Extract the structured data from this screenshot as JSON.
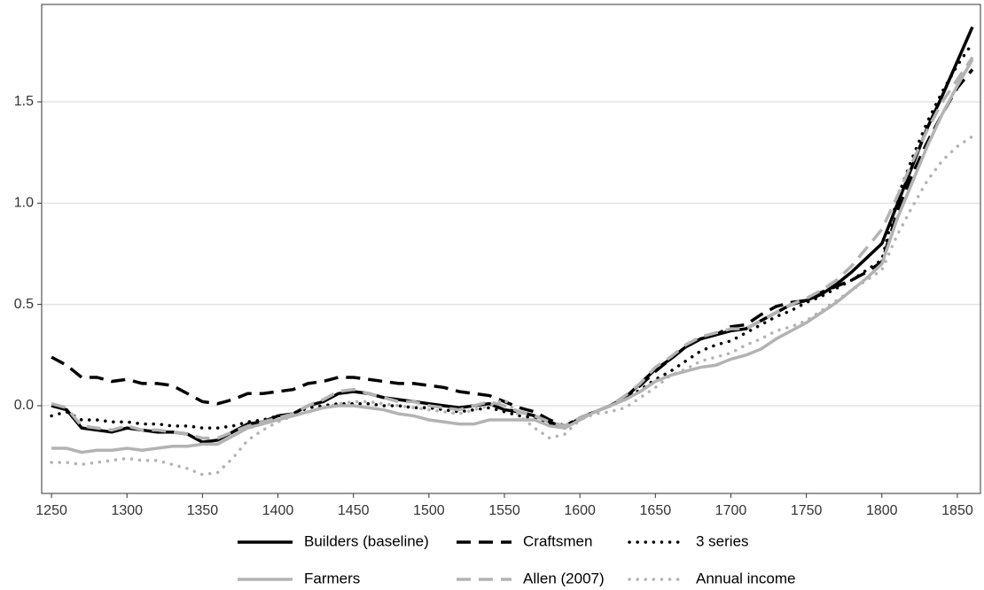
{
  "chart_data": {
    "type": "line",
    "x": [
      1250,
      1260,
      1270,
      1280,
      1290,
      1300,
      1310,
      1320,
      1330,
      1340,
      1350,
      1360,
      1370,
      1380,
      1390,
      1400,
      1410,
      1420,
      1430,
      1440,
      1450,
      1460,
      1470,
      1480,
      1490,
      1500,
      1510,
      1520,
      1530,
      1540,
      1550,
      1560,
      1570,
      1580,
      1590,
      1600,
      1610,
      1620,
      1630,
      1640,
      1650,
      1660,
      1670,
      1680,
      1690,
      1700,
      1710,
      1720,
      1730,
      1740,
      1750,
      1760,
      1770,
      1780,
      1790,
      1800,
      1810,
      1820,
      1830,
      1840,
      1850,
      1860
    ],
    "xlim": [
      1243.5,
      1865.3
    ],
    "xticks": [
      1250,
      1300,
      1350,
      1400,
      1450,
      1500,
      1550,
      1600,
      1650,
      1700,
      1750,
      1800,
      1850
    ],
    "ylim": [
      -0.433,
      1.981
    ],
    "yticks": [
      {
        "value": 0,
        "label": "0.0"
      },
      0.5,
      {
        "value": 1,
        "label": "1.0"
      },
      1.5
    ],
    "grid": true,
    "legend": "bottom",
    "series": [
      {
        "name": "Builders (baseline)",
        "color": "#000000",
        "line_style": "solid",
        "values": [
          0.0,
          -0.02,
          -0.11,
          -0.12,
          -0.13,
          -0.11,
          -0.12,
          -0.13,
          -0.13,
          -0.14,
          -0.18,
          -0.17,
          -0.13,
          -0.09,
          -0.08,
          -0.05,
          -0.04,
          0.0,
          0.02,
          0.06,
          0.07,
          0.06,
          0.04,
          0.03,
          0.02,
          0.01,
          0.0,
          -0.01,
          0.0,
          0.01,
          -0.02,
          -0.03,
          -0.05,
          -0.08,
          -0.11,
          -0.06,
          -0.03,
          0.0,
          0.04,
          0.11,
          0.18,
          0.23,
          0.29,
          0.33,
          0.35,
          0.37,
          0.38,
          0.42,
          0.46,
          0.5,
          0.52,
          0.55,
          0.6,
          0.66,
          0.73,
          0.8,
          0.99,
          1.18,
          1.37,
          1.53,
          1.7,
          1.87
        ]
      },
      {
        "name": "Craftsmen",
        "color": "#000000",
        "line_style": "dashed",
        "values": [
          0.24,
          0.2,
          0.14,
          0.14,
          0.12,
          0.13,
          0.11,
          0.11,
          0.1,
          0.06,
          0.02,
          0.01,
          0.03,
          0.06,
          0.06,
          0.07,
          0.08,
          0.11,
          0.12,
          0.14,
          0.14,
          0.13,
          0.12,
          0.11,
          0.11,
          0.1,
          0.09,
          0.07,
          0.06,
          0.05,
          0.02,
          -0.01,
          -0.03,
          -0.07,
          -0.1,
          -0.06,
          -0.03,
          0.0,
          0.04,
          0.1,
          0.17,
          0.23,
          0.29,
          0.33,
          0.35,
          0.39,
          0.4,
          0.45,
          0.49,
          0.51,
          0.52,
          0.56,
          0.59,
          0.62,
          0.66,
          0.71,
          0.95,
          1.14,
          1.3,
          1.44,
          1.57,
          1.66
        ]
      },
      {
        "name": "3 series",
        "color": "#000000",
        "line_style": "dotted",
        "values": [
          -0.05,
          -0.03,
          -0.07,
          -0.07,
          -0.08,
          -0.08,
          -0.09,
          -0.09,
          -0.1,
          -0.1,
          -0.11,
          -0.11,
          -0.1,
          -0.08,
          -0.07,
          -0.05,
          -0.04,
          -0.01,
          0.0,
          0.01,
          0.01,
          0.01,
          0.0,
          0.0,
          -0.01,
          -0.01,
          -0.02,
          -0.03,
          -0.02,
          -0.01,
          -0.03,
          -0.05,
          -0.06,
          -0.09,
          -0.11,
          -0.06,
          -0.03,
          0.0,
          0.03,
          0.08,
          0.13,
          0.17,
          0.22,
          0.27,
          0.3,
          0.32,
          0.36,
          0.4,
          0.44,
          0.47,
          0.51,
          0.54,
          0.58,
          0.62,
          0.67,
          0.72,
          1.02,
          1.22,
          1.4,
          1.55,
          1.68,
          1.79
        ]
      },
      {
        "name": "Farmers",
        "color": "#b3b3b3",
        "line_style": "solid",
        "values": [
          -0.21,
          -0.21,
          -0.23,
          -0.22,
          -0.22,
          -0.21,
          -0.22,
          -0.21,
          -0.2,
          -0.2,
          -0.19,
          -0.19,
          -0.15,
          -0.11,
          -0.09,
          -0.07,
          -0.05,
          -0.03,
          -0.01,
          0.0,
          0.0,
          -0.01,
          -0.02,
          -0.04,
          -0.05,
          -0.07,
          -0.08,
          -0.09,
          -0.09,
          -0.07,
          -0.07,
          -0.07,
          -0.07,
          -0.1,
          -0.11,
          -0.07,
          -0.03,
          0.0,
          0.03,
          0.07,
          0.12,
          0.15,
          0.17,
          0.19,
          0.2,
          0.23,
          0.25,
          0.28,
          0.33,
          0.37,
          0.41,
          0.46,
          0.51,
          0.57,
          0.63,
          0.7,
          0.92,
          1.1,
          1.28,
          1.44,
          1.58,
          1.71
        ]
      },
      {
        "name": "Allen (2007)",
        "color": "#b3b3b3",
        "line_style": "dashed",
        "values": [
          0.01,
          -0.01,
          -0.1,
          -0.11,
          -0.12,
          -0.1,
          -0.12,
          -0.12,
          -0.13,
          -0.14,
          -0.16,
          -0.16,
          -0.13,
          -0.1,
          -0.08,
          -0.06,
          -0.04,
          0.0,
          0.03,
          0.07,
          0.08,
          0.06,
          0.04,
          0.02,
          0.02,
          0.0,
          -0.01,
          -0.02,
          0.0,
          0.02,
          0.0,
          -0.03,
          -0.05,
          -0.08,
          -0.1,
          -0.06,
          -0.03,
          0.0,
          0.05,
          0.11,
          0.19,
          0.24,
          0.3,
          0.34,
          0.36,
          0.38,
          0.38,
          0.42,
          0.46,
          0.5,
          0.53,
          0.57,
          0.62,
          0.69,
          0.78,
          0.87,
          1.03,
          1.2,
          1.36,
          1.5,
          1.61,
          1.72
        ]
      },
      {
        "name": "Annual income",
        "color": "#b3b3b3",
        "line_style": "dotted",
        "values": [
          -0.28,
          -0.28,
          -0.29,
          -0.28,
          -0.27,
          -0.26,
          -0.27,
          -0.27,
          -0.29,
          -0.31,
          -0.34,
          -0.33,
          -0.26,
          -0.17,
          -0.12,
          -0.08,
          -0.05,
          -0.03,
          -0.01,
          0.01,
          0.02,
          0.02,
          0.01,
          0.0,
          -0.01,
          -0.02,
          -0.03,
          -0.04,
          -0.02,
          0.0,
          0.03,
          -0.05,
          -0.11,
          -0.16,
          -0.14,
          -0.07,
          -0.04,
          -0.03,
          -0.01,
          0.04,
          0.09,
          0.15,
          0.18,
          0.22,
          0.24,
          0.26,
          0.3,
          0.33,
          0.37,
          0.39,
          0.42,
          0.47,
          0.52,
          0.57,
          0.62,
          0.67,
          0.84,
          0.98,
          1.11,
          1.21,
          1.28,
          1.33
        ]
      }
    ]
  }
}
